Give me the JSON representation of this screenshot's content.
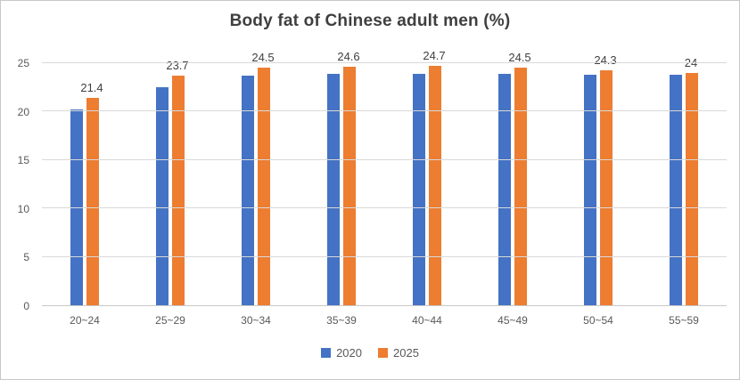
{
  "chart_data": {
    "type": "bar",
    "title": "Body fat of Chinese adult men (%)",
    "categories": [
      "20~24",
      "25~29",
      "30~34",
      "35~39",
      "40~44",
      "45~49",
      "50~54",
      "55~59"
    ],
    "series": [
      {
        "name": "2020",
        "color": "#4472C4",
        "values": [
          20.2,
          22.5,
          23.7,
          23.9,
          23.9,
          23.9,
          23.8,
          23.8
        ]
      },
      {
        "name": "2025",
        "color": "#ED7D31",
        "values": [
          21.4,
          23.7,
          24.5,
          24.6,
          24.7,
          24.5,
          24.3,
          24
        ],
        "labels": [
          "21.4",
          "23.7",
          "24.5",
          "24.6",
          "24.7",
          "24.5",
          "24.3",
          "24"
        ]
      }
    ],
    "ylim": [
      0,
      25
    ],
    "yticks": [
      0,
      5,
      10,
      15,
      20,
      25
    ],
    "grid": true,
    "legend_position": "bottom"
  }
}
